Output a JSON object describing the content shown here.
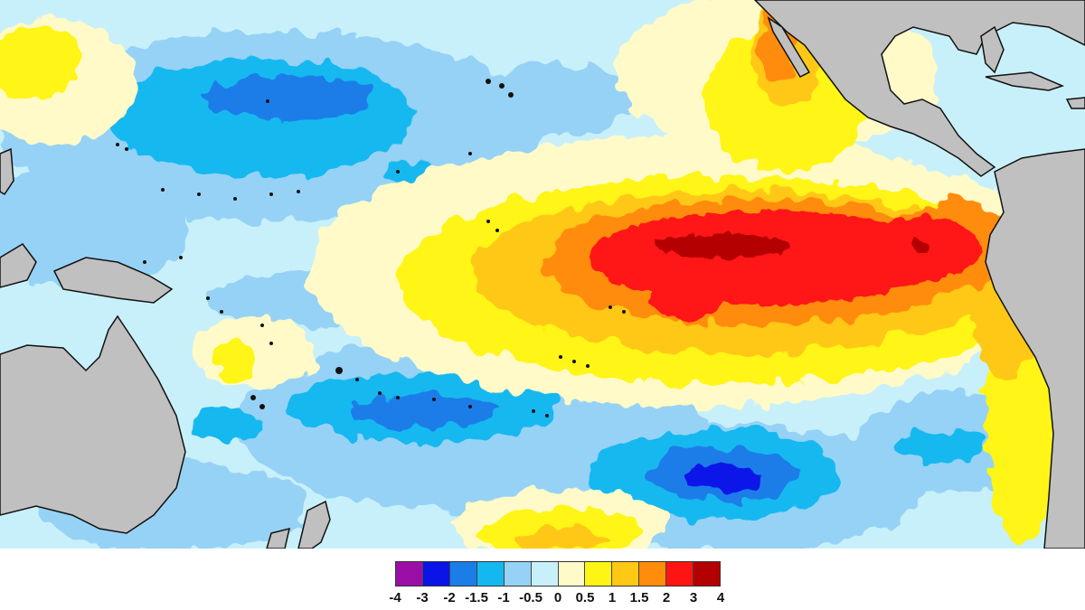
{
  "legend": {
    "colors": [
      "#9b0fa6",
      "#0a14e8",
      "#1a7de8",
      "#14b8f0",
      "#96d2f5",
      "#c8f0fa",
      "#fffac8",
      "#fff514",
      "#ffc814",
      "#ff8c0a",
      "#ff1414",
      "#b40000"
    ],
    "ticks": [
      "-4",
      "-3",
      "-2",
      "-1.5",
      "-1",
      "-0.5",
      "0",
      "0.5",
      "1",
      "1.5",
      "2",
      "3",
      "4"
    ]
  },
  "map": {
    "land_color": "#c0c0c0",
    "ocean_base_color": "#c8f0fa",
    "coast_color": "#111111"
  }
}
